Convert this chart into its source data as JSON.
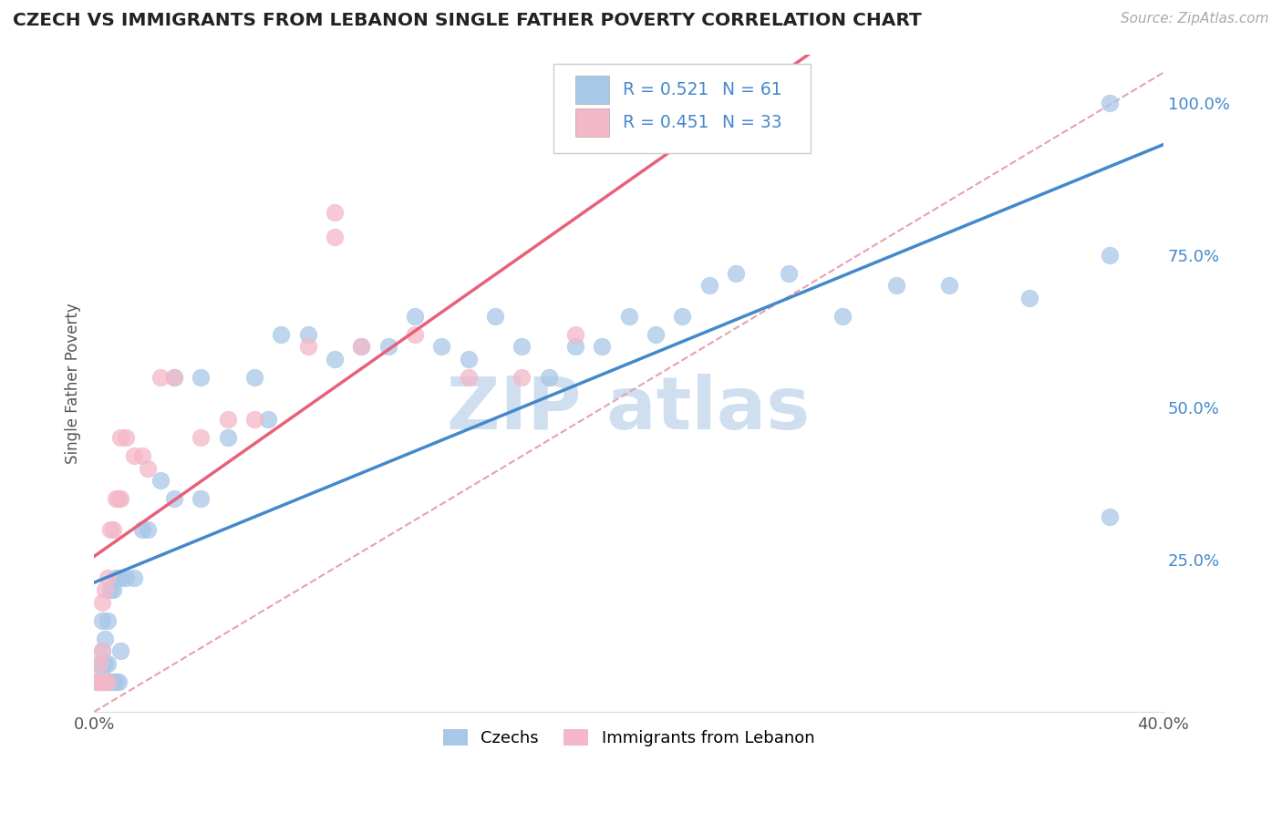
{
  "title": "CZECH VS IMMIGRANTS FROM LEBANON SINGLE FATHER POVERTY CORRELATION CHART",
  "source": "Source: ZipAtlas.com",
  "ylabel": "Single Father Poverty",
  "xlim": [
    0.0,
    0.4
  ],
  "ylim": [
    0.0,
    1.08
  ],
  "xticks": [
    0.0,
    0.1,
    0.2,
    0.3,
    0.4
  ],
  "xticklabels": [
    "0.0%",
    "",
    "",
    "",
    "40.0%"
  ],
  "yticks_right": [
    0.25,
    0.5,
    0.75,
    1.0
  ],
  "yticklabels_right": [
    "25.0%",
    "50.0%",
    "75.0%",
    "100.0%"
  ],
  "legend_r_blue": "R = 0.521",
  "legend_n_blue": "N = 61",
  "legend_r_pink": "R = 0.451",
  "legend_n_pink": "N = 33",
  "blue_color": "#a8c8e8",
  "pink_color": "#f4b8c8",
  "blue_line_color": "#4488cc",
  "pink_line_color": "#e8607a",
  "dashed_line_color": "#e8a0b0",
  "background_color": "#ffffff",
  "grid_color": "#cccccc",
  "watermark_color": "#d0dff0",
  "title_color": "#222222",
  "axis_label_color": "#666666",
  "tick_color": "#4488cc",
  "blue_x": [
    0.001,
    0.002,
    0.002,
    0.003,
    0.003,
    0.003,
    0.003,
    0.004,
    0.004,
    0.004,
    0.005,
    0.005,
    0.005,
    0.006,
    0.006,
    0.007,
    0.007,
    0.008,
    0.008,
    0.009,
    0.01,
    0.01,
    0.012,
    0.015,
    0.018,
    0.02,
    0.025,
    0.03,
    0.03,
    0.04,
    0.04,
    0.05,
    0.06,
    0.065,
    0.07,
    0.08,
    0.09,
    0.1,
    0.11,
    0.12,
    0.13,
    0.14,
    0.15,
    0.16,
    0.17,
    0.18,
    0.19,
    0.2,
    0.21,
    0.22,
    0.23,
    0.24,
    0.26,
    0.28,
    0.3,
    0.32,
    0.35,
    0.38,
    0.38,
    0.005,
    0.38
  ],
  "blue_y": [
    0.05,
    0.05,
    0.08,
    0.05,
    0.07,
    0.1,
    0.15,
    0.05,
    0.08,
    0.12,
    0.05,
    0.08,
    0.15,
    0.05,
    0.2,
    0.05,
    0.2,
    0.05,
    0.22,
    0.05,
    0.22,
    0.1,
    0.22,
    0.22,
    0.3,
    0.3,
    0.38,
    0.35,
    0.55,
    0.35,
    0.55,
    0.45,
    0.55,
    0.48,
    0.62,
    0.62,
    0.58,
    0.6,
    0.6,
    0.65,
    0.6,
    0.58,
    0.65,
    0.6,
    0.55,
    0.6,
    0.6,
    0.65,
    0.62,
    0.65,
    0.7,
    0.72,
    0.72,
    0.65,
    0.7,
    0.7,
    0.68,
    0.75,
    0.32,
    0.05,
    1.0
  ],
  "pink_x": [
    0.001,
    0.002,
    0.002,
    0.003,
    0.003,
    0.003,
    0.004,
    0.004,
    0.005,
    0.005,
    0.006,
    0.007,
    0.008,
    0.009,
    0.01,
    0.01,
    0.012,
    0.015,
    0.018,
    0.02,
    0.025,
    0.03,
    0.04,
    0.05,
    0.06,
    0.08,
    0.1,
    0.12,
    0.14,
    0.16,
    0.18,
    0.09,
    0.09
  ],
  "pink_y": [
    0.05,
    0.05,
    0.08,
    0.05,
    0.1,
    0.18,
    0.05,
    0.2,
    0.05,
    0.22,
    0.3,
    0.3,
    0.35,
    0.35,
    0.35,
    0.45,
    0.45,
    0.42,
    0.42,
    0.4,
    0.55,
    0.55,
    0.45,
    0.48,
    0.48,
    0.6,
    0.6,
    0.62,
    0.55,
    0.55,
    0.62,
    0.78,
    0.82
  ]
}
